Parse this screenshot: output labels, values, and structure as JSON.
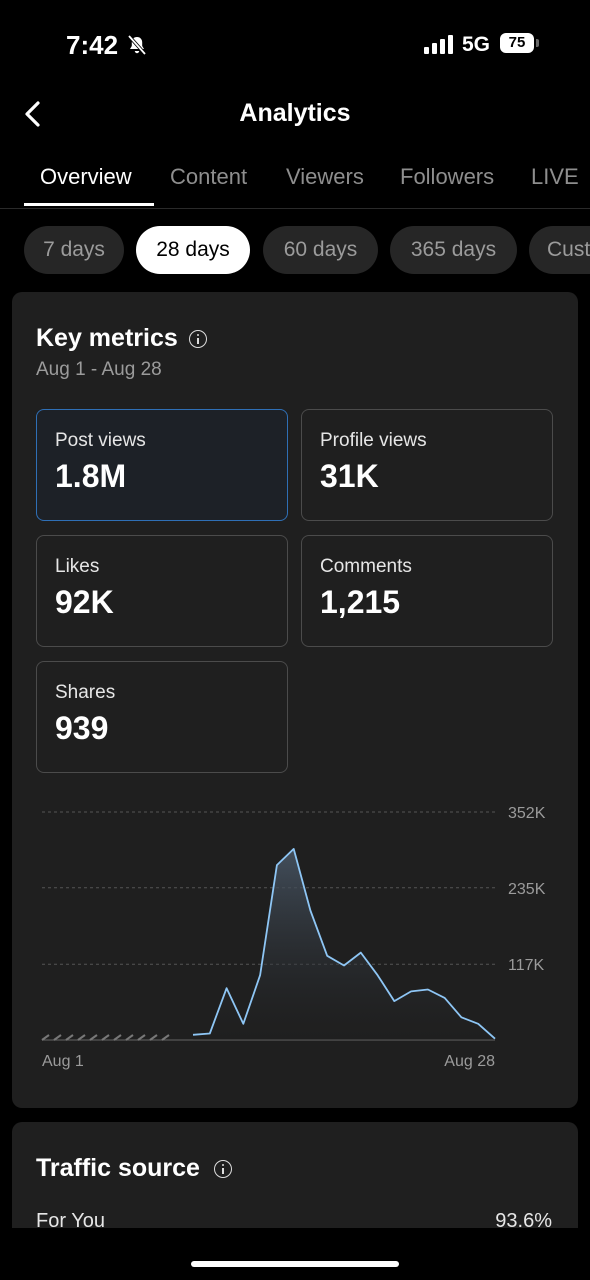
{
  "status_bar": {
    "time": "7:42",
    "network": "5G",
    "battery": "75"
  },
  "header": {
    "title": "Analytics"
  },
  "tabs": [
    {
      "label": "Overview",
      "active": true
    },
    {
      "label": "Content"
    },
    {
      "label": "Viewers"
    },
    {
      "label": "Followers"
    },
    {
      "label": "LIVE"
    }
  ],
  "periods": [
    {
      "label": "7 days"
    },
    {
      "label": "28 days",
      "active": true
    },
    {
      "label": "60 days"
    },
    {
      "label": "365 days"
    },
    {
      "label": "Custom"
    }
  ],
  "key_metrics": {
    "title": "Key metrics",
    "date_range": "Aug 1 - Aug 28",
    "items": [
      {
        "label": "Post views",
        "value": "1.8M",
        "selected": true
      },
      {
        "label": "Profile views",
        "value": "31K"
      },
      {
        "label": "Likes",
        "value": "92K"
      },
      {
        "label": "Comments",
        "value": "1,215"
      },
      {
        "label": "Shares",
        "value": "939"
      }
    ]
  },
  "chart_data": {
    "type": "area",
    "x": [
      1,
      2,
      3,
      4,
      5,
      6,
      7,
      8,
      9,
      10,
      11,
      12,
      13,
      14,
      15,
      16,
      17,
      18,
      19,
      20,
      21,
      22,
      23,
      24,
      25,
      26,
      27,
      28
    ],
    "values": [
      0,
      0,
      0,
      0,
      0,
      0,
      0,
      0,
      0,
      8000,
      10000,
      80000,
      25000,
      100000,
      270000,
      295000,
      200000,
      130000,
      115000,
      135000,
      100000,
      60000,
      75000,
      78000,
      65000,
      35000,
      25000,
      2000
    ],
    "no_data_days": 9,
    "y_ticks": [
      "117K",
      "235K",
      "352K"
    ],
    "x_labels": [
      "Aug 1",
      "Aug 28"
    ],
    "ylim": [
      0,
      352000
    ],
    "line_color": "#8ec6f5"
  },
  "traffic_source": {
    "title": "Traffic source",
    "first_item": {
      "label": "For You",
      "value": "93.6%"
    }
  }
}
